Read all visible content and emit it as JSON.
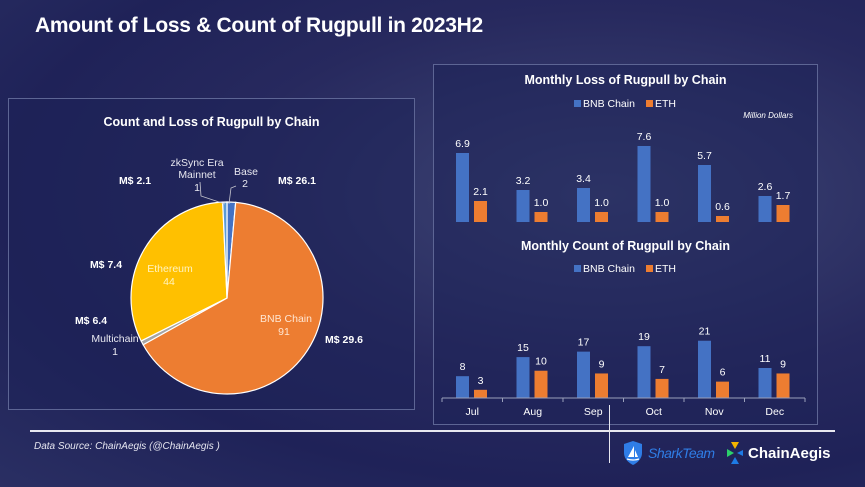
{
  "title": "Amount of Loss & Count of Rugpull in 2023H2",
  "footer": {
    "source": "Data Source: ChainAegis (@ChainAegis )",
    "logos": [
      {
        "name": "SharkTeam",
        "icon": "shark-shield-icon",
        "color": "#2f7de6"
      },
      {
        "name": "ChainAegis",
        "icon": "chainaegis-mark-icon",
        "color": "#ffffff"
      }
    ]
  },
  "chart_data": [
    {
      "type": "pie",
      "title": "Count and Loss of Rugpull by Chain",
      "slices": [
        {
          "label": "Base",
          "count": 2,
          "loss_label": "M$ 26.1",
          "color": "#4472c4"
        },
        {
          "label": "BNB Chain",
          "count": 91,
          "loss_label": "M$ 29.6",
          "color": "#ed7d31"
        },
        {
          "label": "Multichain",
          "count": 1,
          "loss_label": "M$ 6.4",
          "color": "#a5a5a5"
        },
        {
          "label": "Ethereum",
          "count": 44,
          "loss_label": "M$ 7.4",
          "color": "#ffc000"
        },
        {
          "label": "zkSync Era Mainnet",
          "count": 1,
          "loss_label": "M$ 2.1",
          "color": "#5b9bd5"
        }
      ],
      "label_lines": {
        "base": [
          "Base",
          "2"
        ],
        "zksync": [
          "zkSync Era",
          "Mainnet",
          "1"
        ],
        "multichain": [
          "Multichain",
          "1"
        ],
        "ethereum": [
          "Ethereum",
          "44"
        ],
        "bnb": [
          "BNB Chain",
          "91"
        ]
      }
    },
    {
      "type": "bar",
      "title": "Monthly Loss  of Rugpull  by Chain",
      "unit_note": "Million Dollars",
      "categories": [
        "Jul",
        "Aug",
        "Sep",
        "Oct",
        "Nov",
        "Dec"
      ],
      "series": [
        {
          "name": "BNB Chain",
          "color": "#4472c4",
          "values": [
            6.9,
            3.2,
            3.4,
            7.6,
            5.7,
            2.6
          ],
          "labels": [
            "6.9",
            "3.2",
            "3.4",
            "7.6",
            "5.7",
            "2.6"
          ]
        },
        {
          "name": "ETH",
          "color": "#ed7d31",
          "values": [
            2.1,
            1.0,
            1.0,
            1.0,
            0.6,
            1.7
          ],
          "labels": [
            "2.1",
            "1.0",
            "1.0",
            "1.0",
            "0.6",
            "1.7"
          ]
        }
      ],
      "ylim": [
        0,
        8
      ],
      "legend": "top"
    },
    {
      "type": "bar",
      "title": "Monthly Count  of Rugpull  by Chain",
      "categories": [
        "Jul",
        "Aug",
        "Sep",
        "Oct",
        "Nov",
        "Dec"
      ],
      "series": [
        {
          "name": "BNB Chain",
          "color": "#4472c4",
          "values": [
            8,
            15,
            17,
            19,
            21,
            11
          ],
          "labels": [
            "8",
            "15",
            "17",
            "19",
            "21",
            "11"
          ]
        },
        {
          "name": "ETH",
          "color": "#ed7d31",
          "values": [
            3,
            10,
            9,
            7,
            6,
            9
          ],
          "labels": [
            "3",
            "10",
            "9",
            "7",
            "6",
            "9"
          ]
        }
      ],
      "ylim": [
        0,
        22
      ],
      "legend": "top"
    }
  ]
}
